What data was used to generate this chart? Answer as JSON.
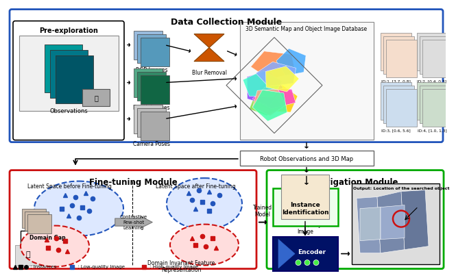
{
  "bg_color": "#ffffff",
  "blue": "#2255bb",
  "red": "#cc1111",
  "green": "#00aa00",
  "orange": "#cc5500",
  "gray": "#888888",
  "dark_blue": "#003399",
  "top_title": "Data Collection Module",
  "pre_explore_title": "Pre-exploration",
  "observations_label": "Observations",
  "input_labels": [
    "RGB Images",
    "Depth Images",
    "Camera Poses"
  ],
  "blur_label": "Blur Removal",
  "db_title": "3D Semantic Map and Object Image Database",
  "id_labels": [
    "ID:1, [3.7, 0.8]",
    "ID:2, [0.4, 0.3]",
    "ID:3, [0.6, 5.6]",
    "ID:4, [1.0, 1.3]"
  ],
  "robot_obs_label": "Robot Observations and 3D Map",
  "fine_tune_title": "Fine-tuning Module",
  "nav_title": "Navigation Module",
  "latent_before": "Latent Space before Fine-tuning",
  "latent_after": "Latent Space after Fine-tuning",
  "contrastive_label": "Contrastive\nFew-shot\nLearning",
  "domain_gap_label": "Domain Gap",
  "domain_invariant": "Domain Invariant Feature\nRepresentation",
  "trained_model": "Trained\nModel",
  "instance_id": "Instance\nIdentification",
  "encoder_label": "Encoder",
  "output_label": "Output: Location of the searched object",
  "query_label": "Given Query\nImage"
}
